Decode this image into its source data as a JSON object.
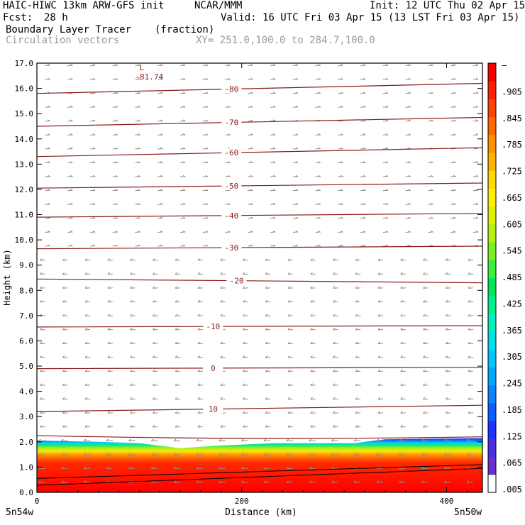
{
  "header": {
    "model": "HAIC-HIWC 13km ARW-GFS init",
    "org": "NCAR/MMM",
    "init": "Init: 12 UTC Thu 02 Apr 15",
    "fcst_label": "Fcst:",
    "fcst_value": "28 h",
    "valid": "Valid: 16 UTC Fri 03 Apr 15 (13 LST Fri 03 Apr 15)",
    "field1_name": "Boundary Layer Tracer",
    "field1_units": "(fraction)",
    "field2_name": "Circulation vectors",
    "xy_range": "XY= 251.0,100.0 to 284.7,100.0"
  },
  "colors": {
    "contour": "#8b1a1a",
    "vector": "#8c8c8c",
    "axis": "#000000",
    "tracer_scale": [
      "#ffffff",
      "#6a2fd0",
      "#4b2fe0",
      "#1f35ff",
      "#0f5cff",
      "#0b85ff",
      "#00aaff",
      "#00c8ff",
      "#00e0e8",
      "#00f0c0",
      "#00f08a",
      "#00e85a",
      "#3cf03c",
      "#7af020",
      "#b4f010",
      "#e0f000",
      "#fff000",
      "#ffd800",
      "#ffb400",
      "#ff9000",
      "#ff6a00",
      "#ff4400",
      "#ff2200",
      "#ff0000"
    ]
  },
  "chart_data": {
    "type": "heatmap",
    "xlabel": "Distance (km)",
    "ylabel": "Height (km)",
    "xlim": [
      0,
      435
    ],
    "ylim": [
      0,
      17
    ],
    "x_ticks": [
      0,
      200,
      400
    ],
    "y_ticks": [
      "0.0",
      "1.0",
      "2.0",
      "3.0",
      "4.0",
      "5.0",
      "6.0",
      "7.0",
      "8.0",
      "9.0",
      "10.0",
      "11.0",
      "12.0",
      "13.0",
      "14.0",
      "15.0",
      "16.0",
      "17.0"
    ],
    "x_endpoints": {
      "left": "5n54w",
      "right": "5n50w"
    },
    "colorbar": {
      "labels": [
        "–",
        ".905",
        ".845",
        ".785",
        ".725",
        ".665",
        ".605",
        ".545",
        ".485",
        ".425",
        ".365",
        ".305",
        ".245",
        ".185",
        ".125",
        ".065",
        ".005"
      ]
    },
    "tracer_top_km": [
      {
        "x": 0,
        "h": 2.05
      },
      {
        "x": 60,
        "h": 2.0
      },
      {
        "x": 100,
        "h": 1.95
      },
      {
        "x": 140,
        "h": 1.75
      },
      {
        "x": 175,
        "h": 1.85
      },
      {
        "x": 230,
        "h": 1.95
      },
      {
        "x": 310,
        "h": 1.95
      },
      {
        "x": 340,
        "h": 2.1
      },
      {
        "x": 435,
        "h": 2.15
      }
    ],
    "temperature_contours": [
      {
        "value": 10,
        "label": "10",
        "label_x": 172,
        "left_h": 3.2,
        "right_h": 3.45
      },
      {
        "value": 0,
        "label": "0",
        "label_x": 172,
        "left_h": 4.9,
        "right_h": 4.95
      },
      {
        "value": -10,
        "label": "-10",
        "label_x": 172,
        "left_h": 6.55,
        "right_h": 6.6
      },
      {
        "value": -20,
        "label": "-20",
        "label_x": 195,
        "left_h": 8.45,
        "right_h": 8.3
      },
      {
        "value": -30,
        "label": "-30",
        "label_x": 190,
        "left_h": 9.65,
        "right_h": 9.75
      },
      {
        "value": -40,
        "label": "-40",
        "label_x": 190,
        "left_h": 10.9,
        "right_h": 11.05
      },
      {
        "value": -50,
        "label": "-50",
        "label_x": 190,
        "left_h": 12.05,
        "right_h": 12.25
      },
      {
        "value": -60,
        "label": "-60",
        "label_x": 190,
        "left_h": 13.3,
        "right_h": 13.65
      },
      {
        "value": -70,
        "label": "-70",
        "label_x": 190,
        "left_h": 14.5,
        "right_h": 14.85
      },
      {
        "value": -80,
        "label": "-80",
        "label_x": 190,
        "left_h": 15.8,
        "right_h": 16.2
      }
    ],
    "min_marker": {
      "symbol": "L",
      "value": "-81.74",
      "x": 100,
      "h": 16.6
    }
  }
}
